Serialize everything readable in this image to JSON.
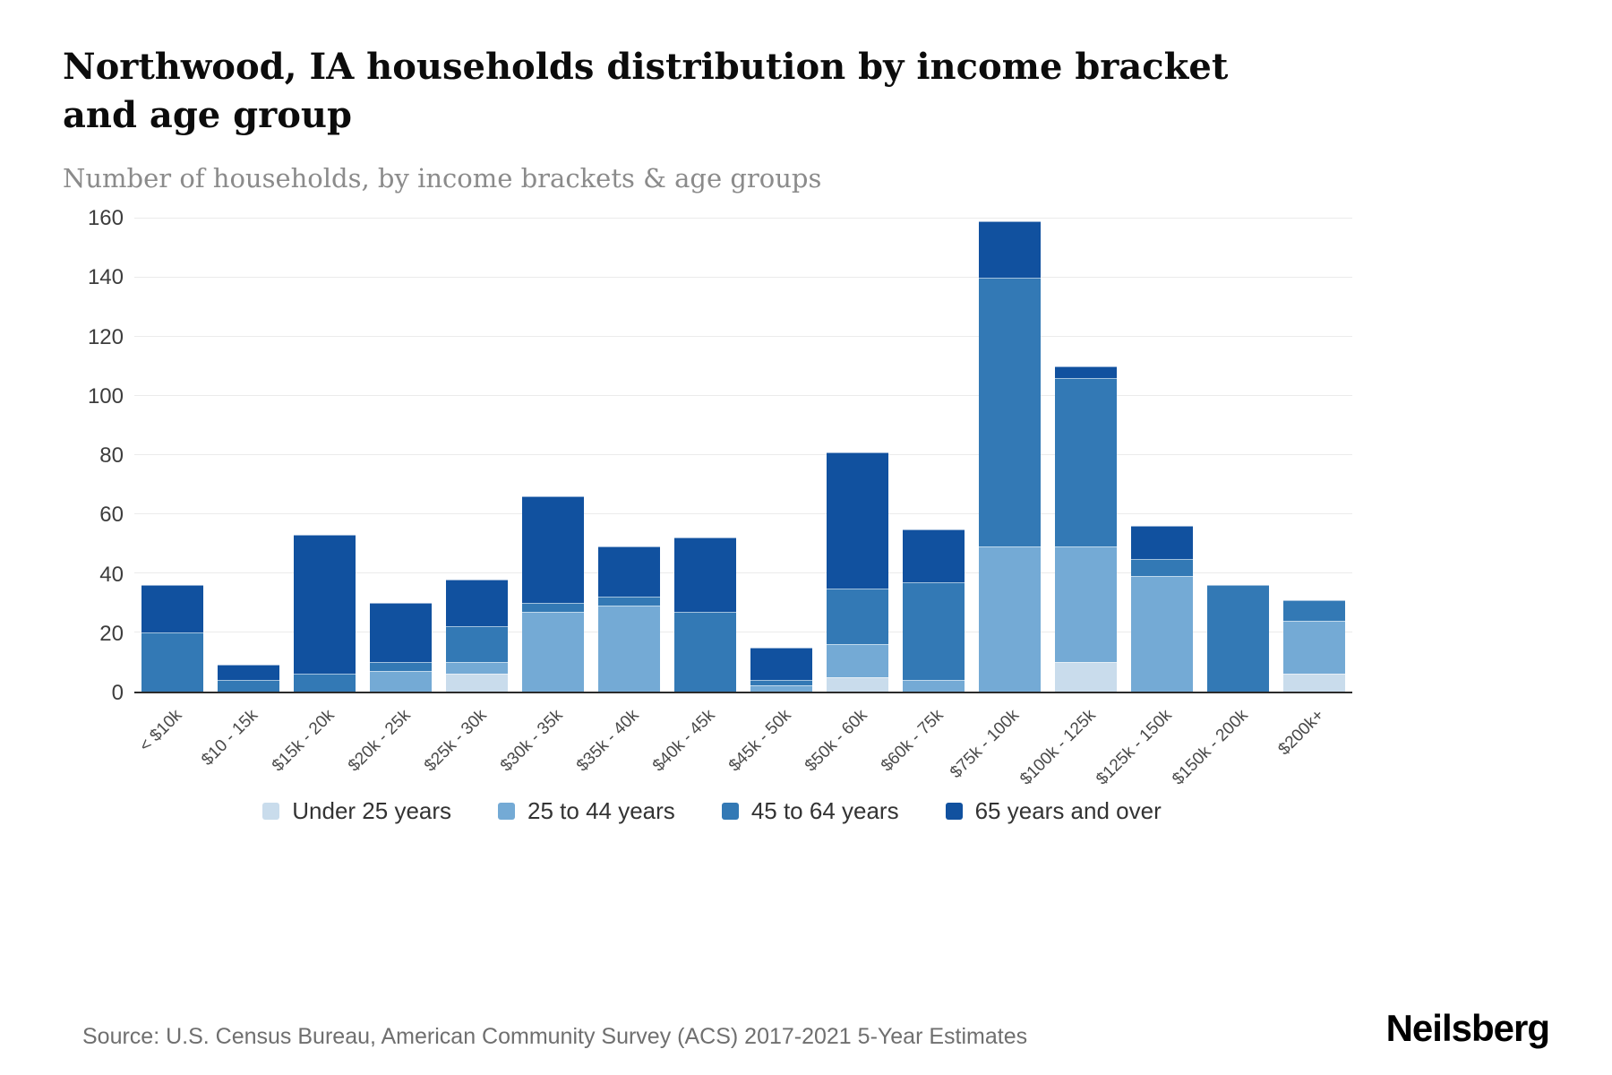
{
  "header": {
    "title": "Northwood, IA households distribution by income bracket and age group",
    "subtitle": "Number of households, by income brackets & age groups"
  },
  "footer": {
    "source": "Source: U.S. Census Bureau, American Community Survey (ACS) 2017-2021 5-Year Estimates",
    "brand": "Neilsberg"
  },
  "chart_data": {
    "type": "bar",
    "stacked": true,
    "title": "Northwood, IA households distribution by income bracket and age group",
    "subtitle": "Number of households, by income brackets & age groups",
    "xlabel": "",
    "ylabel": "",
    "ylim": [
      0,
      160
    ],
    "yticks": [
      0,
      20,
      40,
      60,
      80,
      100,
      120,
      140,
      160
    ],
    "grid": true,
    "legend_position": "bottom",
    "categories": [
      "< $10k",
      "$10 - 15k",
      "$15k - 20k",
      "$20k - 25k",
      "$25k - 30k",
      "$30k - 35k",
      "$35k - 40k",
      "$40k - 45k",
      "$45k - 50k",
      "$50k - 60k",
      "$60k - 75k",
      "$75k - 100k",
      "$100k - 125k",
      "$125k - 150k",
      "$150k - 200k",
      "$200k+"
    ],
    "series": [
      {
        "name": "Under 25 years",
        "color": "#c9dcec",
        "values": [
          0,
          0,
          0,
          0,
          6,
          0,
          0,
          0,
          0,
          5,
          0,
          0,
          10,
          0,
          0,
          6
        ]
      },
      {
        "name": "25 to 44 years",
        "color": "#74aad5",
        "values": [
          0,
          0,
          0,
          7,
          4,
          27,
          29,
          0,
          2,
          11,
          4,
          49,
          39,
          39,
          0,
          18
        ]
      },
      {
        "name": "45 to 64 years",
        "color": "#3379b5",
        "values": [
          20,
          4,
          6,
          3,
          12,
          3,
          3,
          27,
          2,
          19,
          33,
          91,
          57,
          6,
          36,
          7
        ]
      },
      {
        "name": "65 years and over",
        "color": "#11519f",
        "values": [
          16,
          5,
          47,
          20,
          16,
          36,
          17,
          25,
          11,
          46,
          18,
          19,
          4,
          11,
          0,
          0
        ]
      }
    ],
    "totals": [
      36,
      9,
      53,
      30,
      38,
      66,
      49,
      52,
      15,
      81,
      55,
      159,
      110,
      56,
      36,
      31
    ]
  }
}
